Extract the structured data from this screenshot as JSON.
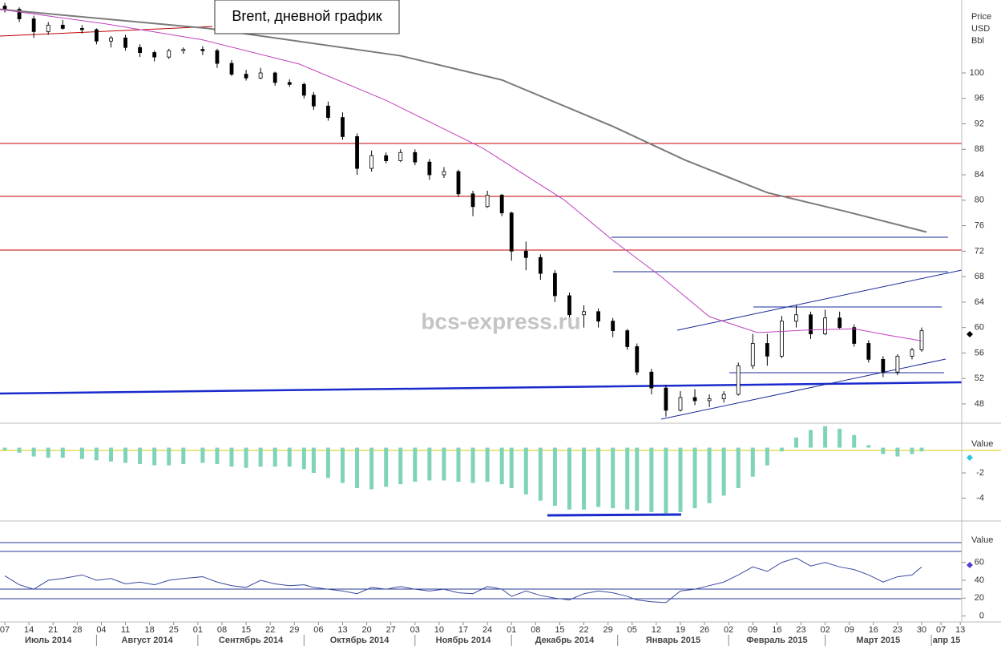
{
  "chart_data": [
    {
      "type": "candlestick",
      "title": "Brent, дневной график",
      "watermark": "bcs-express.ru",
      "ylabel": [
        "Price",
        "USD",
        "Bbl"
      ],
      "x": [
        0,
        3,
        6,
        9,
        12,
        16,
        19,
        22,
        25,
        28,
        31,
        34,
        37,
        41,
        44,
        47,
        50,
        53,
        56,
        59,
        62,
        64,
        67,
        70,
        73,
        76,
        79,
        82,
        85,
        88,
        91,
        94,
        97,
        100,
        103,
        105,
        108,
        111,
        114,
        117,
        120,
        123,
        126,
        129,
        131,
        134,
        137,
        140,
        143,
        146,
        149,
        152,
        155,
        158,
        161,
        164,
        167,
        170,
        173,
        176,
        179,
        182,
        185,
        188,
        190
      ],
      "open": [
        110.5,
        110,
        108.5,
        106.5,
        107.5,
        107,
        106.8,
        105,
        105.5,
        104,
        103.2,
        102.5,
        103.5,
        103.7,
        103.5,
        101.5,
        99.8,
        99.2,
        100,
        98.5,
        98.2,
        96.5,
        94.8,
        93,
        90,
        85,
        87,
        86.2,
        87.5,
        86,
        84,
        84.5,
        81,
        79,
        80.8,
        78,
        72,
        71,
        68.5,
        65,
        62,
        62.5,
        61,
        59.5,
        57,
        53,
        50.5,
        47,
        49,
        48.5,
        48.8,
        49.5,
        54,
        57.5,
        55.5,
        61,
        62,
        59,
        61.5,
        60,
        57.5,
        55,
        53,
        55.5,
        56.5
      ],
      "high": [
        111,
        110.3,
        109,
        108,
        108.3,
        107.5,
        107,
        105.8,
        106,
        104.5,
        103.5,
        103.8,
        104,
        104.2,
        103.8,
        102,
        100.5,
        100.8,
        100.2,
        99,
        98.5,
        97,
        95.5,
        93.8,
        90.5,
        87.8,
        87.5,
        88,
        88,
        86.5,
        85.2,
        84.8,
        81.5,
        81.5,
        81,
        78.2,
        73.5,
        71.5,
        69,
        65.5,
        63.5,
        63,
        61.5,
        59.8,
        57.5,
        53.5,
        51,
        50,
        50.3,
        49.5,
        50,
        54.5,
        59,
        59,
        61.8,
        63.5,
        62.5,
        62.8,
        62.5,
        60.5,
        58,
        55.5,
        55.8,
        56.8,
        60
      ],
      "low": [
        109.5,
        108,
        105.5,
        106,
        106.8,
        106.2,
        104.5,
        104,
        103.5,
        102.5,
        101.8,
        102.2,
        103,
        102.8,
        100.8,
        99.5,
        98.8,
        99,
        98,
        97.8,
        96,
        94.2,
        92.5,
        89.5,
        84,
        84.5,
        85.8,
        86,
        85.5,
        83.2,
        83.5,
        80.5,
        77.5,
        78.8,
        77.5,
        70.5,
        69,
        67.5,
        64,
        61.5,
        60,
        60,
        58.5,
        56.5,
        52.5,
        49.5,
        46,
        46.8,
        47.8,
        47.5,
        48.2,
        49.3,
        53.5,
        54,
        55.2,
        60,
        58.2,
        58.8,
        59.8,
        57,
        54.5,
        52.2,
        52.5,
        55,
        56.2
      ],
      "close": [
        110,
        108.5,
        106.5,
        107.5,
        107,
        106.8,
        105,
        105.5,
        104,
        103.2,
        102.5,
        103.5,
        103.7,
        103.5,
        101.5,
        99.8,
        99.2,
        100,
        98.5,
        98.2,
        96.5,
        94.8,
        93,
        90,
        85,
        87,
        86.2,
        87.5,
        86,
        84,
        84.5,
        81,
        79,
        80.8,
        78,
        72,
        71,
        68.5,
        65,
        62,
        62.5,
        61,
        59.5,
        57,
        53,
        50.5,
        47,
        49,
        48.5,
        48.8,
        49.5,
        54,
        57.5,
        55.5,
        61,
        62,
        59,
        61.5,
        60,
        57.5,
        55,
        53,
        55.5,
        56.5,
        59.5
      ],
      "up_color": "#ffffff",
      "down_color": "#000000",
      "overlays": [
        {
          "color": "#7a7a7a",
          "x": [
            -1,
            42,
            82,
            103,
            126,
            141,
            158,
            175,
            191
          ],
          "values": [
            110,
            107,
            102.7,
            98.9,
            91.6,
            86.3,
            81.2,
            78.1,
            75
          ]
        },
        {
          "color": "#c040c0",
          "x": [
            -1,
            21,
            41,
            61,
            79,
            99,
            116,
            126,
            136,
            146,
            156,
            166,
            176,
            183,
            190
          ],
          "values": [
            110,
            107.7,
            105.2,
            101.4,
            95.7,
            88.2,
            80,
            73.7,
            68,
            61.7,
            59.2,
            59.6,
            59.8,
            58.8,
            57.9
          ]
        }
      ],
      "xlim": [
        -1,
        198.3
      ],
      "ylim": [
        44.97,
        111.46
      ],
      "yticks": [
        48,
        52,
        56,
        60,
        64,
        68,
        72,
        76,
        80,
        84,
        88,
        92,
        96,
        100
      ]
    },
    {
      "type": "bar",
      "ylabel": "Value",
      "x": [
        0,
        3,
        6,
        9,
        12,
        16,
        19,
        22,
        25,
        28,
        31,
        34,
        37,
        41,
        44,
        47,
        50,
        53,
        56,
        59,
        62,
        64,
        67,
        70,
        73,
        76,
        79,
        82,
        85,
        88,
        91,
        94,
        97,
        100,
        103,
        105,
        108,
        111,
        114,
        117,
        120,
        123,
        126,
        129,
        131,
        134,
        137,
        140,
        143,
        146,
        149,
        152,
        155,
        158,
        161,
        164,
        167,
        170,
        173,
        176,
        179,
        182,
        185,
        188,
        190
      ],
      "values": [
        -0.2,
        -0.4,
        -0.7,
        -0.8,
        -0.8,
        -0.9,
        -1.0,
        -1.1,
        -1.2,
        -1.3,
        -1.4,
        -1.4,
        -1.3,
        -1.2,
        -1.3,
        -1.5,
        -1.6,
        -1.5,
        -1.5,
        -1.5,
        -1.7,
        -2.0,
        -2.4,
        -2.8,
        -3.2,
        -3.3,
        -3.1,
        -2.9,
        -2.7,
        -2.6,
        -2.6,
        -2.7,
        -2.8,
        -2.7,
        -2.9,
        -3.2,
        -3.7,
        -4.2,
        -4.6,
        -4.9,
        -4.9,
        -4.7,
        -4.8,
        -4.9,
        -5.0,
        -5.1,
        -5.2,
        -5.1,
        -4.8,
        -4.4,
        -3.8,
        -3.2,
        -2.3,
        -1.4,
        -0.3,
        0.8,
        1.4,
        1.7,
        1.5,
        1.0,
        0.2,
        -0.5,
        -0.7,
        -0.5,
        -0.3
      ],
      "color": "#7fd3b8",
      "xlim": [
        -1,
        198.3
      ],
      "ylim": [
        -5.81,
        1.94
      ],
      "yticks": [
        -4,
        -2
      ]
    },
    {
      "type": "line",
      "ylabel": "Value",
      "x": [
        0,
        3,
        6,
        9,
        12,
        16,
        19,
        22,
        25,
        28,
        31,
        34,
        37,
        41,
        44,
        47,
        50,
        53,
        56,
        59,
        62,
        64,
        67,
        70,
        73,
        76,
        79,
        82,
        85,
        88,
        91,
        94,
        97,
        100,
        103,
        105,
        108,
        111,
        114,
        117,
        120,
        123,
        126,
        129,
        131,
        134,
        137,
        140,
        143,
        146,
        149,
        152,
        155,
        158,
        161,
        164,
        167,
        170,
        173,
        176,
        179,
        182,
        185,
        188,
        190
      ],
      "values": [
        45,
        35,
        30,
        40,
        42,
        46,
        40,
        42,
        36,
        38,
        35,
        40,
        42,
        44,
        38,
        34,
        32,
        40,
        36,
        34,
        35,
        32,
        30,
        28,
        25,
        32,
        30,
        33,
        30,
        28,
        30,
        26,
        25,
        33,
        30,
        22,
        28,
        23,
        20,
        18,
        25,
        28,
        26,
        22,
        18,
        16,
        15,
        28,
        30,
        34,
        38,
        46,
        55,
        50,
        60,
        65,
        56,
        60,
        55,
        52,
        46,
        38,
        44,
        46,
        55
      ],
      "color": "#3a4aa0",
      "xlim": [
        -1,
        198.3
      ],
      "ylim": [
        -6.7,
        106.5
      ],
      "yticks": [
        0,
        20,
        40,
        60
      ],
      "xticks": [
        {
          "value": 0,
          "label": "07"
        },
        {
          "value": 5,
          "label": "14"
        },
        {
          "value": 10,
          "label": "21"
        },
        {
          "value": 15,
          "label": "28"
        },
        {
          "value": 20,
          "label": "04"
        },
        {
          "value": 25,
          "label": "11"
        },
        {
          "value": 30,
          "label": "18"
        },
        {
          "value": 35,
          "label": "25"
        },
        {
          "value": 40,
          "label": "01"
        },
        {
          "value": 45,
          "label": "08"
        },
        {
          "value": 50,
          "label": "15"
        },
        {
          "value": 55,
          "label": "22"
        },
        {
          "value": 60,
          "label": "29"
        },
        {
          "value": 65,
          "label": "06"
        },
        {
          "value": 70,
          "label": "13"
        },
        {
          "value": 75,
          "label": "20"
        },
        {
          "value": 80,
          "label": "27"
        },
        {
          "value": 85,
          "label": "03"
        },
        {
          "value": 90,
          "label": "10"
        },
        {
          "value": 95,
          "label": "17"
        },
        {
          "value": 100,
          "label": "24"
        },
        {
          "value": 105,
          "label": "01"
        },
        {
          "value": 110,
          "label": "08"
        },
        {
          "value": 115,
          "label": "15"
        },
        {
          "value": 120,
          "label": "22"
        },
        {
          "value": 125,
          "label": "29"
        },
        {
          "value": 130,
          "label": "05"
        },
        {
          "value": 135,
          "label": "12"
        },
        {
          "value": 140,
          "label": "19"
        },
        {
          "value": 145,
          "label": "26"
        },
        {
          "value": 150,
          "label": "02"
        },
        {
          "value": 155,
          "label": "09"
        },
        {
          "value": 160,
          "label": "16"
        },
        {
          "value": 165,
          "label": "23"
        },
        {
          "value": 170,
          "label": "02"
        },
        {
          "value": 175,
          "label": "09"
        },
        {
          "value": 180,
          "label": "16"
        },
        {
          "value": 185,
          "label": "23"
        },
        {
          "value": 190,
          "label": "30"
        },
        {
          "value": 194,
          "label": "07"
        },
        {
          "value": 198,
          "label": "13"
        }
      ],
      "month_ticks": [
        {
          "value": -1,
          "label": "Июль 2014"
        },
        {
          "value": 19,
          "label": "Август 2014"
        },
        {
          "value": 40,
          "label": "Сентябрь 2014"
        },
        {
          "value": 62,
          "label": "Октябрь 2014"
        },
        {
          "value": 85,
          "label": "Ноябрь 2014"
        },
        {
          "value": 105,
          "label": "Декабрь 2014"
        },
        {
          "value": 127,
          "label": "Январь 2015"
        },
        {
          "value": 150,
          "label": "Февраль 2015"
        },
        {
          "value": 170,
          "label": "Март 2015"
        },
        {
          "value": 192,
          "label": "апр 15"
        }
      ]
    }
  ]
}
